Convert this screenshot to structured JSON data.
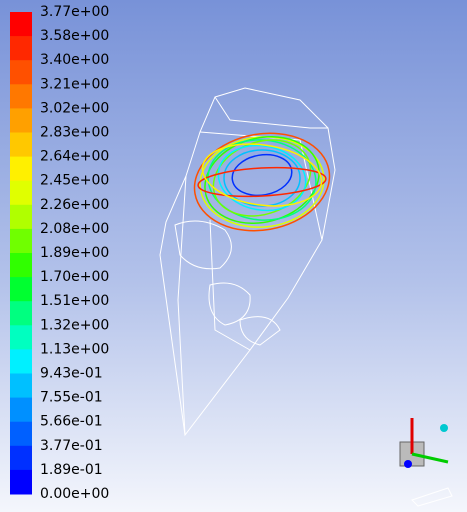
{
  "colorbar": {
    "labels": [
      "3.77e+00",
      "3.58e+00",
      "3.40e+00",
      "3.21e+00",
      "3.02e+00",
      "2.83e+00",
      "2.64e+00",
      "2.45e+00",
      "2.26e+00",
      "2.08e+00",
      "1.89e+00",
      "1.70e+00",
      "1.51e+00",
      "1.32e+00",
      "1.13e+00",
      "9.43e-01",
      "7.55e-01",
      "5.66e-01",
      "3.77e-01",
      "1.89e-01",
      "0.00e+00"
    ],
    "colors": [
      "#ff0000",
      "#ff2800",
      "#ff5000",
      "#ff7800",
      "#ffa000",
      "#ffc800",
      "#fff000",
      "#e0ff00",
      "#b0ff00",
      "#70ff00",
      "#30ff00",
      "#00ff30",
      "#00ff80",
      "#00ffc0",
      "#00f0ff",
      "#00c0ff",
      "#0090ff",
      "#0060ff",
      "#0030ff",
      "#0000ff"
    ]
  }
}
